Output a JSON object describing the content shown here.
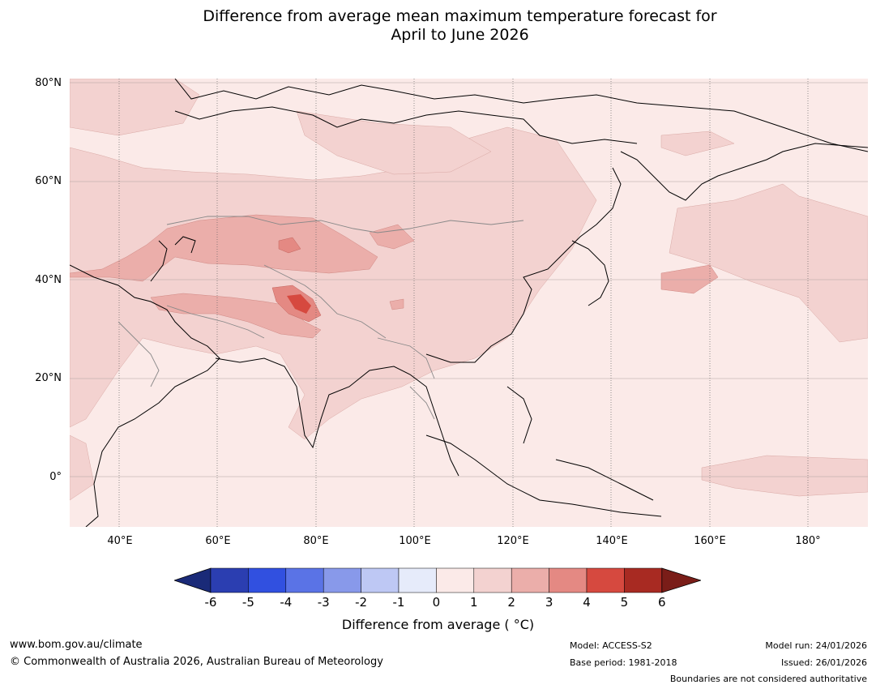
{
  "title": {
    "line1": "Difference from average mean maximum temperature forecast for",
    "line2": "April to June 2026"
  },
  "map": {
    "lat_labels": [
      "80°N",
      "60°N",
      "40°N",
      "20°N",
      "0°"
    ],
    "lon_labels": [
      "40°E",
      "60°E",
      "80°E",
      "100°E",
      "120°E",
      "140°E",
      "160°E",
      "180°"
    ],
    "region": "Asia",
    "highest_anomaly_area": "western Himalaya / Tibetan plateau"
  },
  "colorbar": {
    "ticks": [
      "-6",
      "-5",
      "-4",
      "-3",
      "-2",
      "-1",
      "0",
      "1",
      "2",
      "3",
      "4",
      "5",
      "6"
    ],
    "colors": [
      "#1a2a78",
      "#2b3eb1",
      "#3150e0",
      "#5a73e6",
      "#8899ea",
      "#bec8f4",
      "#e6ebfa",
      "#fbeae8",
      "#f3d2d0",
      "#ebaeaa",
      "#e48983",
      "#d6493f",
      "#a82a22",
      "#7a1d18"
    ],
    "label": "Difference from average ( °C)"
  },
  "footer": {
    "website": "www.bom.gov.au/climate",
    "copyright": "© Commonwealth of Australia 2026, Australian Bureau of Meteorology",
    "model": "Model: ACCESS-S2",
    "base_period": "Base period: 1981-2018",
    "model_run": "Model run: 24/01/2026",
    "issued": "Issued: 26/01/2026",
    "disclaimer": "Boundaries are not considered authoritative"
  }
}
